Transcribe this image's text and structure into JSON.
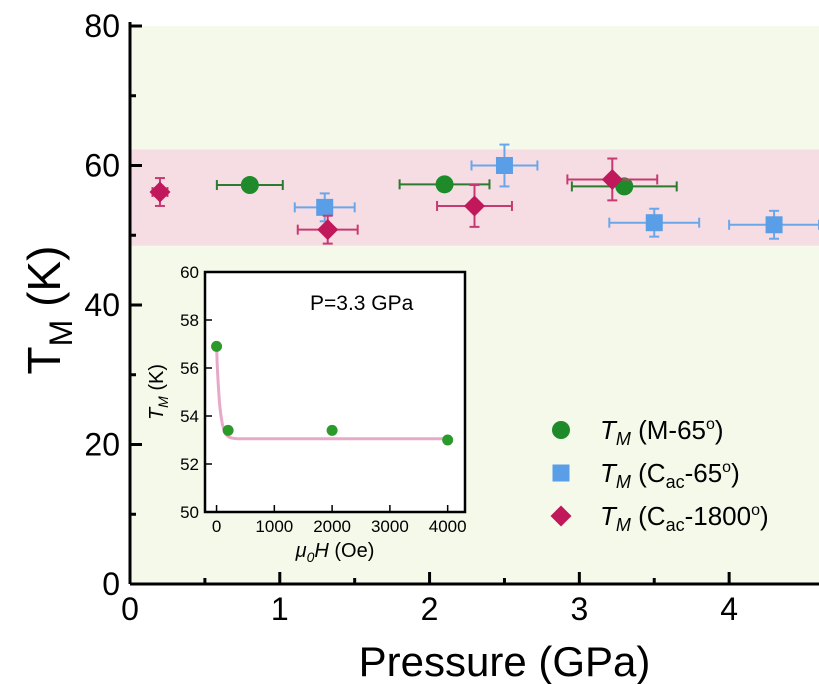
{
  "chart_data": [
    {
      "type": "scatter",
      "title": "",
      "xlabel": "Pressure (GPa)",
      "ylabel_main": "T",
      "ylabel_sub": "M",
      "ylabel_unit": "(K)",
      "xlim": [
        0,
        4.6
      ],
      "ylim": [
        0,
        80
      ],
      "xticks": [
        0,
        1,
        2,
        3,
        4
      ],
      "yticks": [
        0,
        20,
        40,
        60,
        80
      ],
      "background_color": "#f4f9ea",
      "band": {
        "ymin": 48.5,
        "ymax": 62.3,
        "color": "#f6dde3"
      },
      "legend_position": "bottom-right",
      "series": [
        {
          "name": "M-65°",
          "legend_italic": "T",
          "legend_sub": "M",
          "legend_text_pre": " (M-65",
          "legend_text_sub": "",
          "legend_text_post": "",
          "legend_deg": "o",
          "legend_close": ")",
          "marker": "circle",
          "color": "#1e8a2a",
          "errcolor": "#2c7a30",
          "points": [
            {
              "x": 0.8,
              "y": 57.2,
              "xerr": 0.22,
              "yerr": 0
            },
            {
              "x": 2.1,
              "y": 57.3,
              "xerr": 0.3,
              "yerr": 0
            },
            {
              "x": 3.3,
              "y": 57.0,
              "xerr": 0.35,
              "yerr": 0
            }
          ]
        },
        {
          "name": "Cac-65°",
          "legend_italic": "T",
          "legend_sub": "M",
          "legend_text_pre": " (C",
          "legend_text_sub": "ac",
          "legend_text_post": "-65",
          "legend_deg": "o",
          "legend_close": ")",
          "marker": "square",
          "color": "#5a9ee8",
          "errcolor": "#6aa7ea",
          "points": [
            {
              "x": 1.3,
              "y": 54.0,
              "xerr": 0.2,
              "yerr": 2.0
            },
            {
              "x": 2.5,
              "y": 60.0,
              "xerr": 0.22,
              "yerr": 3.0
            },
            {
              "x": 3.5,
              "y": 51.8,
              "xerr": 0.3,
              "yerr": 2.0
            },
            {
              "x": 4.3,
              "y": 51.5,
              "xerr": 0.3,
              "yerr": 2.0
            }
          ]
        },
        {
          "name": "Cac-1800°",
          "legend_italic": "T",
          "legend_sub": "M",
          "legend_text_pre": " (C",
          "legend_text_sub": "ac",
          "legend_text_post": "-1800",
          "legend_deg": "o",
          "legend_close": ")",
          "marker": "diamond",
          "color": "#c0185a",
          "errcolor": "#c63a72",
          "points": [
            {
              "x": 0.2,
              "y": 56.2,
              "xerr": 0.05,
              "yerr": 2.0
            },
            {
              "x": 1.32,
              "y": 50.8,
              "xerr": 0.2,
              "yerr": 2.0
            },
            {
              "x": 2.3,
              "y": 54.2,
              "xerr": 0.25,
              "yerr": 3.0
            },
            {
              "x": 3.22,
              "y": 58.0,
              "xerr": 0.3,
              "yerr": 3.0
            }
          ]
        }
      ]
    },
    {
      "type": "scatter",
      "annotation": "P=3.3 GPa",
      "xlabel_italic": "μ",
      "xlabel_sub": "0",
      "xlabel_italic2": "H",
      "xlabel_unit": " (Oe)",
      "ylabel_italic": "T",
      "ylabel_sub": "M",
      "ylabel_unit": " (K)",
      "xlim": [
        -200,
        4300
      ],
      "ylim": [
        50,
        60
      ],
      "xticks": [
        0,
        1000,
        2000,
        3000,
        4000
      ],
      "yticks": [
        50,
        52,
        54,
        56,
        58,
        60
      ],
      "points": [
        {
          "x": 0,
          "y": 56.9
        },
        {
          "x": 200,
          "y": 53.4
        },
        {
          "x": 2000,
          "y": 53.4
        },
        {
          "x": 4000,
          "y": 53.0
        }
      ],
      "fit_color": "#e8a8c8",
      "point_color": "#2a9a2a",
      "fit": {
        "a": 53.05,
        "b": 3.85,
        "tau": 55,
        "c": 7e-05
      }
    }
  ]
}
